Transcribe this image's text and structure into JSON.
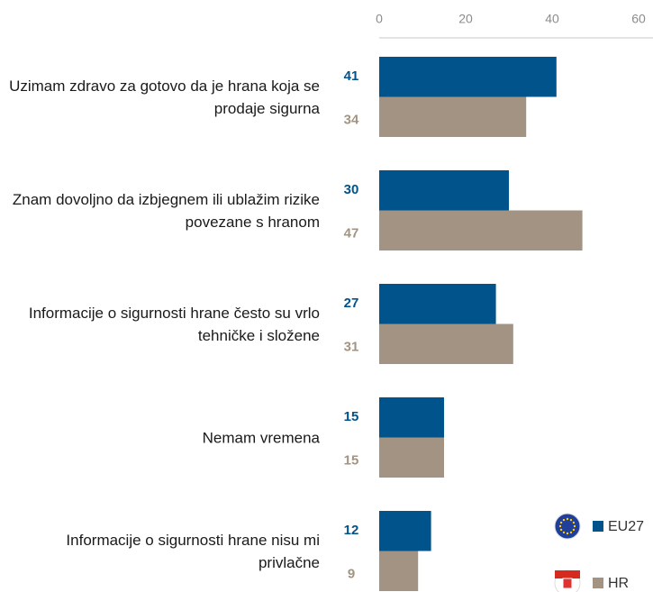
{
  "chart_data": {
    "type": "bar",
    "orientation": "horizontal",
    "categories": [
      "Uzimam zdravo za gotovo da je hrana koja se prodaje sigurna",
      "Znam dovoljno da izbjegnem ili ublažim rizike povezane s hranom",
      "Informacije o sigurnosti hrane često su vrlo tehničke i složene",
      "Nemam vremena",
      "Informacije o sigurnosti hrane nisu mi privlačne"
    ],
    "series": [
      {
        "name": "EU27",
        "color": "#00538b",
        "values": [
          41,
          30,
          27,
          15,
          12
        ]
      },
      {
        "name": "HR",
        "color": "#a39382",
        "values": [
          34,
          47,
          31,
          15,
          9
        ]
      }
    ],
    "xlim": [
      0,
      63
    ],
    "xticks": [
      0,
      20,
      40,
      60
    ],
    "legend": "bottom-right",
    "grid": false
  }
}
